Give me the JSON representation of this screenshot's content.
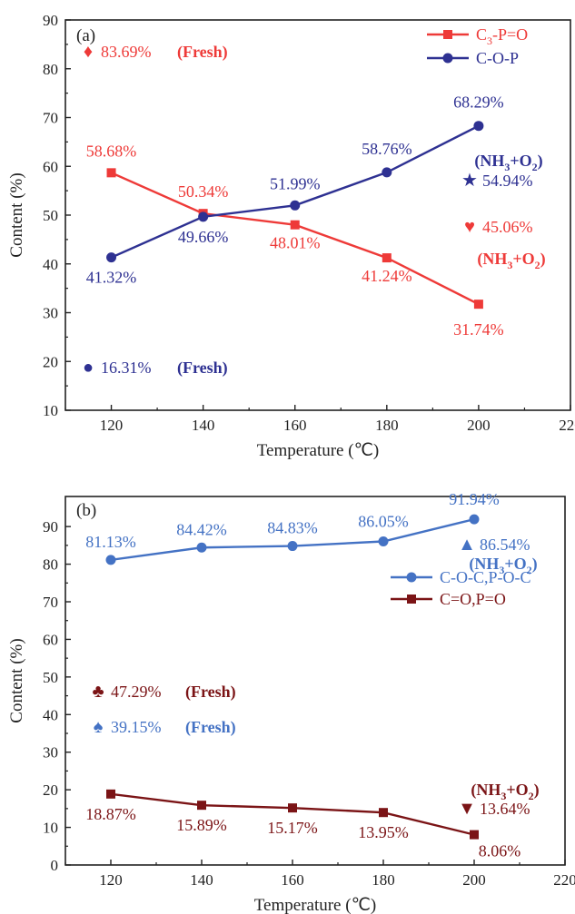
{
  "chart_data": [
    {
      "type": "line",
      "panel_label": "(a)",
      "xlabel": "Temperature (℃)",
      "ylabel": "Content (%)",
      "xlim": [
        110,
        220
      ],
      "ylim": [
        10,
        90
      ],
      "x_ticks": [
        120,
        140,
        160,
        180,
        200,
        220
      ],
      "y_ticks": [
        10,
        20,
        30,
        40,
        50,
        60,
        70,
        80,
        90
      ],
      "x": [
        120,
        140,
        160,
        180,
        200
      ],
      "legend_position": "top-right",
      "series": [
        {
          "name": "C3-P=O",
          "name_parts": {
            "pre": "C",
            "sub": "3",
            "post": "-P=O"
          },
          "color": "#ee3a38",
          "marker": "square",
          "values": [
            58.68,
            50.34,
            48.01,
            41.24,
            31.74
          ],
          "labels": [
            "58.68%",
            "50.34%",
            "48.01%",
            "41.24%",
            "31.74%"
          ]
        },
        {
          "name": "C-O-P",
          "color": "#2e3192",
          "marker": "circle",
          "values": [
            41.32,
            49.66,
            51.99,
            58.76,
            68.29
          ],
          "labels": [
            "41.32%",
            "49.66%",
            "51.99%",
            "58.76%",
            "68.29%"
          ]
        }
      ],
      "annotations": [
        {
          "symbol": "♦",
          "value": "83.69%",
          "tag": "(Fresh)",
          "color": "#ee3a38",
          "y": 83.69
        },
        {
          "symbol": "●",
          "value": "16.31%",
          "tag": "(Fresh)",
          "color": "#2e3192",
          "y": 16.31
        },
        {
          "symbol": "★",
          "value": "54.94%",
          "tag": "(NH3+O2)",
          "color": "#2e3192",
          "y": 54.94
        },
        {
          "symbol": "♥",
          "value": "45.06%",
          "tag": "(NH3+O2)",
          "color": "#ee3a38",
          "y": 45.06
        }
      ]
    },
    {
      "type": "line",
      "panel_label": "(b)",
      "xlabel": "Temperature (℃)",
      "ylabel": "Content (%)",
      "xlim": [
        110,
        220
      ],
      "ylim": [
        0,
        98
      ],
      "x_ticks": [
        120,
        140,
        160,
        180,
        200,
        220
      ],
      "y_ticks": [
        0,
        10,
        20,
        30,
        40,
        50,
        60,
        70,
        80,
        90
      ],
      "x": [
        120,
        140,
        160,
        180,
        200
      ],
      "legend_position": "center-right",
      "series": [
        {
          "name": "C-O-C,P-O-C",
          "color": "#4472c4",
          "marker": "circle",
          "values": [
            81.13,
            84.42,
            84.83,
            86.05,
            91.94
          ],
          "labels": [
            "81.13%",
            "84.42%",
            "84.83%",
            "86.05%",
            "91.94%"
          ]
        },
        {
          "name": "C=O,P=O",
          "color": "#7b1416",
          "marker": "square",
          "values": [
            18.87,
            15.89,
            15.17,
            13.95,
            8.06
          ],
          "labels": [
            "18.87%",
            "15.89%",
            "15.17%",
            "13.95%",
            "8.06%"
          ]
        }
      ],
      "annotations": [
        {
          "symbol": "▲",
          "value": "86.54%",
          "tag": "(NH3+O2)",
          "color": "#4472c4",
          "y": 86.54
        },
        {
          "symbol": "♣",
          "value": "47.29%",
          "tag": "(Fresh)",
          "color": "#7b1416",
          "y": 47.29
        },
        {
          "symbol": "♠",
          "value": "39.15%",
          "tag": "(Fresh)",
          "color": "#4472c4",
          "y": 39.15
        },
        {
          "symbol": "▼",
          "value": "13.64%",
          "tag": "(NH3+O2)",
          "color": "#7b1416",
          "y": 13.64
        }
      ]
    }
  ]
}
